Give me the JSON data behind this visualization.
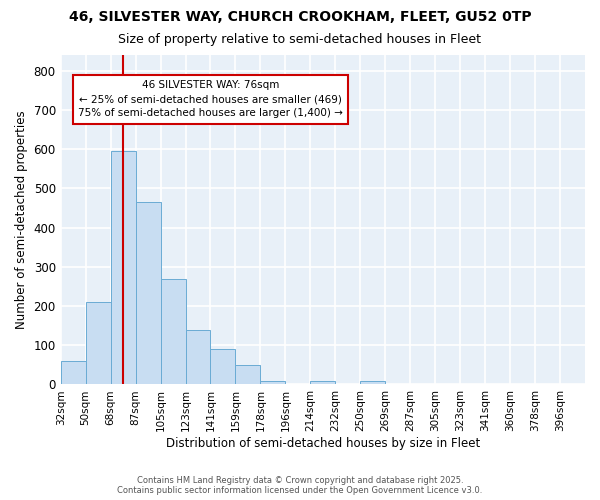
{
  "title": "46, SILVESTER WAY, CHURCH CROOKHAM, FLEET, GU52 0TP",
  "subtitle": "Size of property relative to semi-detached houses in Fleet",
  "xlabel": "Distribution of semi-detached houses by size in Fleet",
  "ylabel": "Number of semi-detached properties",
  "bar_color": "#c8ddf2",
  "bar_edge_color": "#6aabd4",
  "background_color": "#e8f0f8",
  "grid_color": "#ffffff",
  "bins": [
    "32sqm",
    "50sqm",
    "68sqm",
    "87sqm",
    "105sqm",
    "123sqm",
    "141sqm",
    "159sqm",
    "178sqm",
    "196sqm",
    "214sqm",
    "232sqm",
    "250sqm",
    "269sqm",
    "287sqm",
    "305sqm",
    "323sqm",
    "341sqm",
    "360sqm",
    "378sqm",
    "396sqm"
  ],
  "values": [
    60,
    210,
    595,
    465,
    270,
    140,
    90,
    50,
    10,
    0,
    10,
    0,
    10,
    0,
    0,
    0,
    0,
    0,
    0,
    0,
    0
  ],
  "ylim": [
    0,
    840
  ],
  "yticks": [
    0,
    100,
    200,
    300,
    400,
    500,
    600,
    700,
    800
  ],
  "vline_x": 2.0,
  "annotation_text": "46 SILVESTER WAY: 76sqm\n← 25% of semi-detached houses are smaller (469)\n75% of semi-detached houses are larger (1,400) →",
  "footer_text": "Contains HM Land Registry data © Crown copyright and database right 2025.\nContains public sector information licensed under the Open Government Licence v3.0.",
  "figsize": [
    6.0,
    5.0
  ],
  "dpi": 100
}
